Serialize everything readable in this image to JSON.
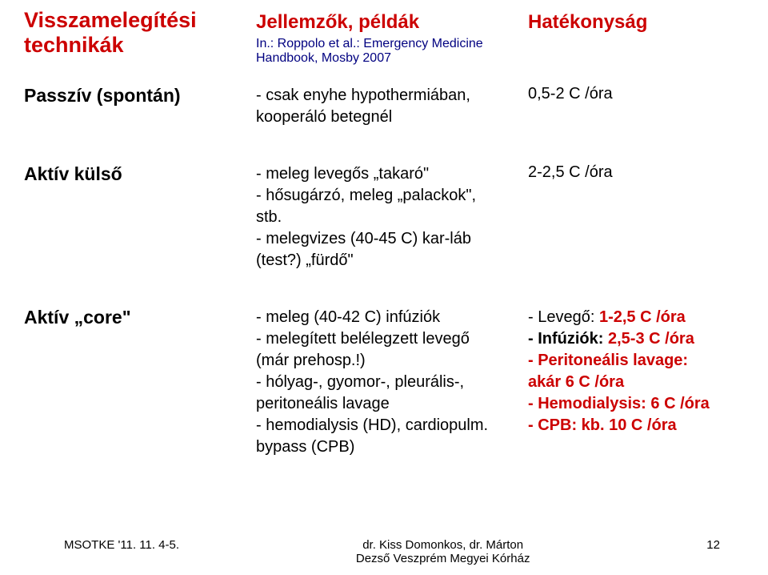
{
  "colors": {
    "red": "#cc0000",
    "navy": "#000080",
    "black": "#000000",
    "bg": "#ffffff"
  },
  "header": {
    "title_line1": "Visszamelegítési",
    "title_line2": "technikák",
    "col2_title": "Jellemzők, példák",
    "citation": "In.: Roppolo et al.: Emergency Medicine Handbook, Mosby 2007",
    "col3_title": "Hatékonyság"
  },
  "rows": [
    {
      "label": "Passzív (spontán)",
      "desc_plain": "- csak enyhe hypothermiában, kooperáló betegnél",
      "rate_plain": "0,5-2 C /óra"
    },
    {
      "label": "Aktív külső",
      "desc_plain": "- meleg levegős „takaró\"\n- hősugárzó, meleg „palackok\", stb.\n- melegvizes (40-45 C) kar-láb (test?) „fürdő\"",
      "rate_plain": "2-2,5 C /óra"
    },
    {
      "label": "Aktív „core\"",
      "desc_plain": "- meleg (40-42 C) infúziók\n- melegített belélegzett levegő (már prehosp.!)\n- hólyag-, gyomor-, pleurális-, peritoneális lavage\n- hemodialysis (HD), cardiopulm. bypass (CPB)",
      "rates": {
        "air_label": "- Levegő:",
        "air_value": "1-2,5 C /óra",
        "inf_label": "- Infúziók:",
        "inf_value": "2,5-3 C /óra",
        "peri_label": "- Peritoneális lavage:",
        "peri_value": "akár 6 C /óra",
        "hd_label": "- Hemodialysis:",
        "hd_value": "6 C /óra",
        "cpb_label": "- CPB:",
        "cpb_value": "kb. 10 C /óra"
      }
    }
  ],
  "footer": {
    "left": "MSOTKE '11. 11. 4-5.",
    "center_line1": "dr. Kiss Domonkos, dr. Márton",
    "center_line2": "Dezső  Veszprém Megyei Kórház",
    "page": "12"
  }
}
